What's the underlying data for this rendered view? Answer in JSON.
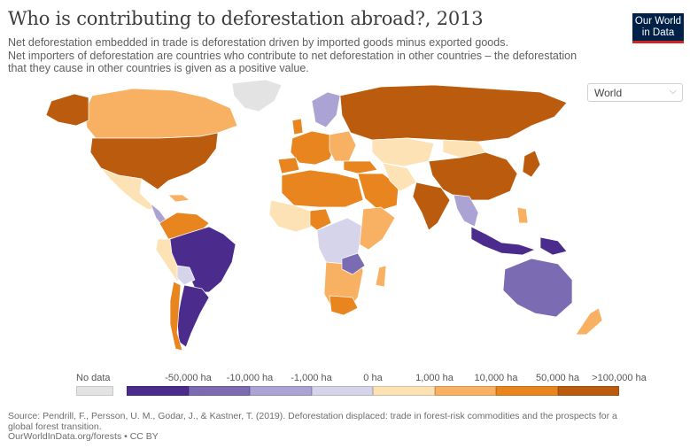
{
  "title": "Who is contributing to deforestation abroad?, 2013",
  "subtitle_lines": [
    "Net deforestation embedded in trade is deforestation driven by imported goods minus exported goods.",
    "Net importers of deforestation are countries who contribute to net deforestation in other countries – the deforestation",
    "that they cause in other countries is given as a positive value."
  ],
  "logo": {
    "line1": "Our World",
    "line2": "in Data"
  },
  "entity_selector": {
    "value": "World"
  },
  "legend": {
    "no_data_label": "No data",
    "no_data_color": "#e3e3e3",
    "bins": [
      {
        "color": "#4b2b8c"
      },
      {
        "color": "#7b6bb2"
      },
      {
        "color": "#aaa3d3"
      },
      {
        "color": "#d6d4ea"
      },
      {
        "color": "#fde2b6"
      },
      {
        "color": "#f8b062"
      },
      {
        "color": "#e8851f"
      },
      {
        "color": "#bb5b0d"
      }
    ],
    "tick_labels": [
      "-50,000 ha",
      "-10,000 ha",
      "-1,000 ha",
      "0 ha",
      "1,000 ha",
      "10,000 ha",
      "50,000 ha",
      ">100,000 ha"
    ]
  },
  "source": {
    "line1": "Source: Pendrill, F., Persson, U. M., Godar, J., & Kastner, T. (2019). Deforestation displaced: trade in forest-risk commodities and the prospects for a",
    "line2": "global forest transition.",
    "line3": "OurWorldInData.org/forests • CC BY"
  }
}
